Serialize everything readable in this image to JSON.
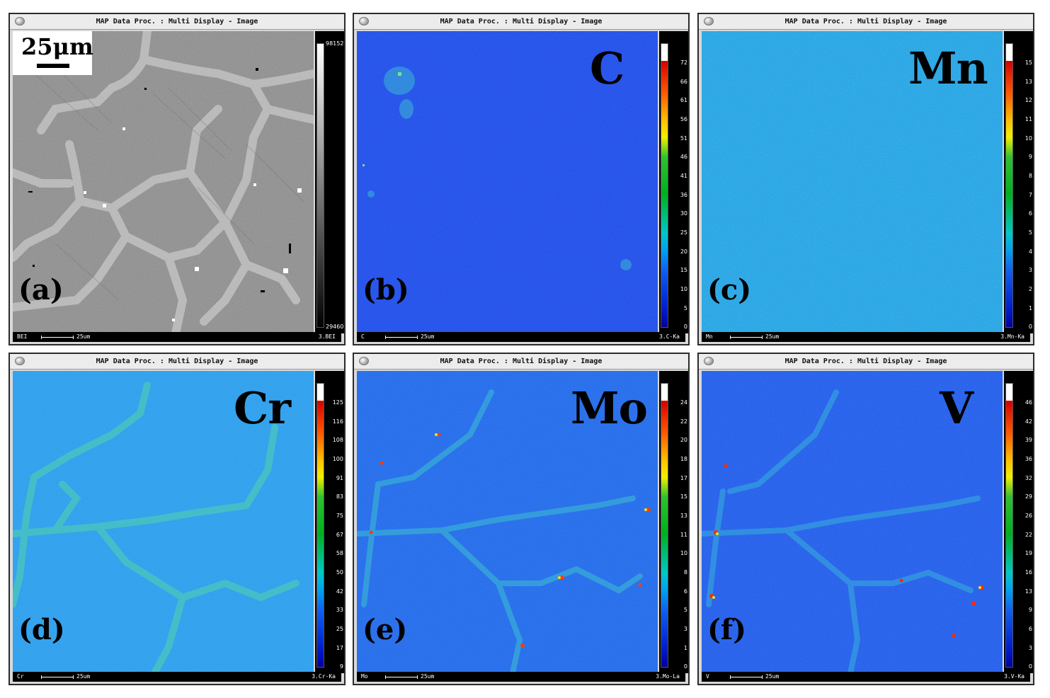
{
  "window_title": "MAP Data Proc. : Multi Display - Image",
  "scale_box_text": "25μm",
  "panels": [
    {
      "label": "(a)",
      "element": "",
      "status_left": "BEI",
      "status_scale": "25um",
      "status_right": "3.BEI",
      "colorbar": "gray",
      "ticks": [
        "98152",
        "29460"
      ],
      "base": "#8e8e8e",
      "background": "#8f8f8f"
    },
    {
      "label": "(b)",
      "element": "C",
      "status_left": "C",
      "status_scale": "25um",
      "status_right": "3.C-Ka",
      "colorbar": "jet",
      "ticks": [
        "72",
        "66",
        "61",
        "56",
        "51",
        "46",
        "41",
        "36",
        "30",
        "25",
        "20",
        "15",
        "10",
        "5",
        "0"
      ],
      "background": "#1f4fe8"
    },
    {
      "label": "(c)",
      "element": "Mn",
      "status_left": "Mn",
      "status_scale": "25um",
      "status_right": "3.Mn-Ka",
      "colorbar": "jet",
      "ticks": [
        "15",
        "13",
        "12",
        "11",
        "10",
        "9",
        "8",
        "7",
        "6",
        "5",
        "4",
        "3",
        "2",
        "1",
        "0"
      ],
      "background": "#1f8fe0"
    },
    {
      "label": "(d)",
      "element": "Cr",
      "status_left": "Cr",
      "status_scale": "25um",
      "status_right": "3.Cr-Ka",
      "colorbar": "jet",
      "ticks": [
        "125",
        "116",
        "108",
        "100",
        "91",
        "83",
        "75",
        "67",
        "58",
        "50",
        "42",
        "33",
        "25",
        "17",
        "9"
      ],
      "background": "#2b93ea"
    },
    {
      "label": "(e)",
      "element": "Mo",
      "status_left": "Mo",
      "status_scale": "25um",
      "status_right": "3.Mo-La",
      "colorbar": "jet",
      "ticks": [
        "24",
        "22",
        "20",
        "18",
        "17",
        "15",
        "13",
        "11",
        "10",
        "8",
        "6",
        "5",
        "3",
        "1",
        "0"
      ],
      "background": "#1f5fe6"
    },
    {
      "label": "(f)",
      "element": "V",
      "status_left": "V",
      "status_scale": "25um",
      "status_right": "3.V-Ka",
      "colorbar": "jet",
      "ticks": [
        "46",
        "42",
        "39",
        "36",
        "32",
        "29",
        "26",
        "22",
        "19",
        "16",
        "13",
        "9",
        "6",
        "3",
        "0"
      ],
      "background": "#1f52e6"
    }
  ]
}
